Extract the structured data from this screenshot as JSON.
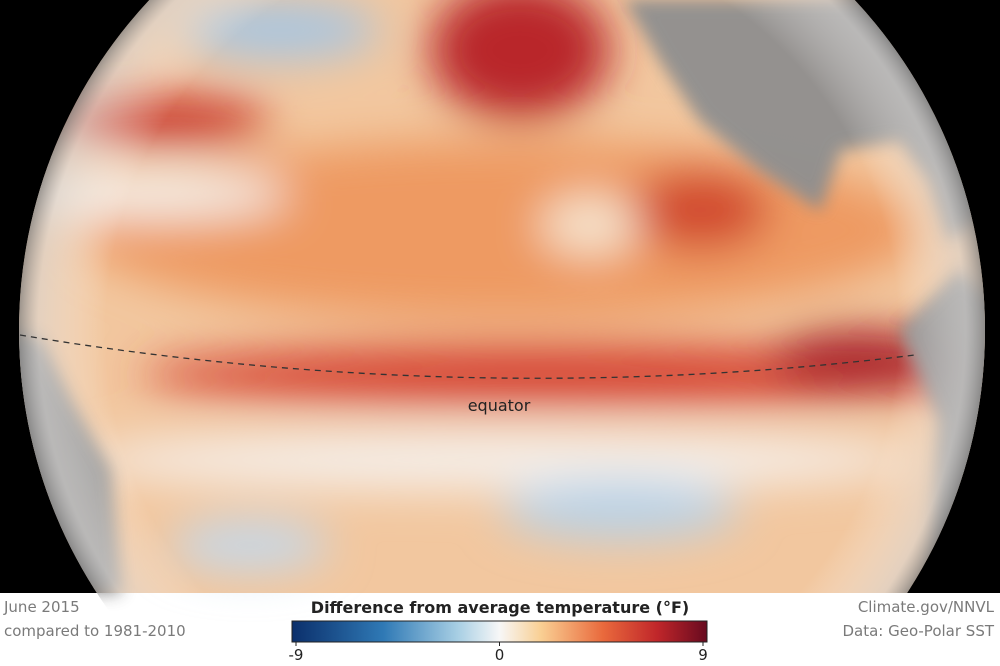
{
  "map": {
    "label": "equator"
  },
  "footer": {
    "date": "June 2015",
    "baseline": "compared to 1981-2010",
    "credit": "Climate.gov/NNVL",
    "source": "Data: Geo-Polar SST"
  },
  "legend": {
    "title": "Difference from average temperature (°F)",
    "lim": [
      -9,
      9
    ],
    "ticks": [
      -9,
      0,
      9
    ]
  }
}
